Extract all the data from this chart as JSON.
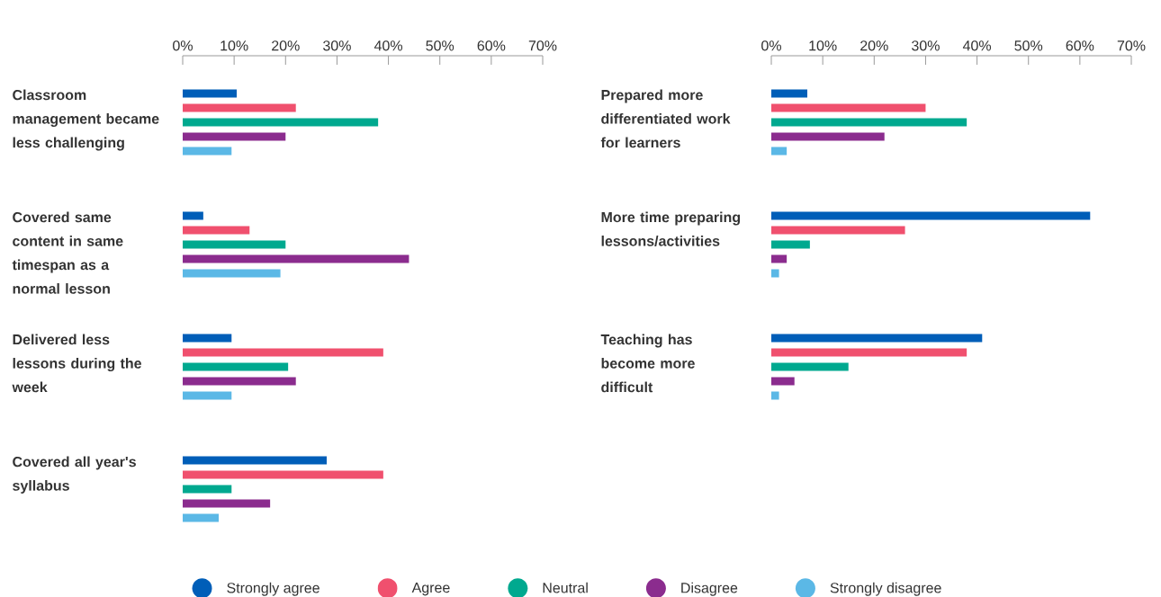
{
  "chart_data": [
    {
      "type": "bar",
      "orientation": "horizontal",
      "categories": [
        "Classroom management became less challenging",
        "Covered same content in same timespan as a normal lesson",
        "Delivered less lessons during the week",
        "Covered all year's syllabus"
      ],
      "series": [
        {
          "name": "Strongly agree",
          "color": "#005eb8",
          "values": [
            10.5,
            4,
            9.5,
            28
          ]
        },
        {
          "name": "Agree",
          "color": "#f0506e",
          "values": [
            22,
            13,
            39,
            39
          ]
        },
        {
          "name": "Neutral",
          "color": "#00a98f",
          "values": [
            38,
            20,
            20.5,
            9.5
          ]
        },
        {
          "name": "Disagree",
          "color": "#8b2c8e",
          "values": [
            20,
            44,
            22,
            17
          ]
        },
        {
          "name": "Strongly disagree",
          "color": "#5bb8e6",
          "values": [
            9.5,
            19,
            9.5,
            7
          ]
        }
      ],
      "xlim": [
        0,
        70
      ],
      "xticks": [
        {
          "value": 0,
          "label": "0%"
        },
        {
          "value": 10,
          "label": "10%"
        },
        {
          "value": 20,
          "label": "20%"
        },
        {
          "value": 30,
          "label": "30%"
        },
        {
          "value": 40,
          "label": "40%"
        },
        {
          "value": 50,
          "label": "50%"
        },
        {
          "value": 60,
          "label": "60%"
        },
        {
          "value": 70,
          "label": "70%"
        }
      ],
      "legend": "bottom"
    },
    {
      "type": "bar",
      "orientation": "horizontal",
      "categories": [
        "Prepared more differentiated work for learners",
        "More time preparing lessons/activities",
        "Teaching has become more difficult"
      ],
      "series": [
        {
          "color": "#005eb8",
          "values": [
            7,
            62,
            41
          ]
        },
        {
          "color": "#f0506e",
          "values": [
            30,
            26,
            38
          ]
        },
        {
          "color": "#00a98f",
          "values": [
            38,
            7.5,
            15
          ]
        },
        {
          "color": "#8b2c8e",
          "values": [
            22,
            3,
            4.5
          ]
        },
        {
          "color": "#5bb8e6",
          "values": [
            3,
            1.5,
            1.5
          ]
        }
      ],
      "xlim": [
        0,
        70
      ],
      "xticks": [
        {
          "value": 0,
          "label": "0%"
        },
        {
          "value": 10,
          "label": "10%"
        },
        {
          "value": 20,
          "label": "20%"
        },
        {
          "value": 30,
          "label": "30%"
        },
        {
          "value": 40,
          "label": "40%"
        },
        {
          "value": 50,
          "label": "50%"
        },
        {
          "value": 60,
          "label": "60%"
        },
        {
          "value": 70,
          "label": "70%"
        }
      ]
    }
  ]
}
